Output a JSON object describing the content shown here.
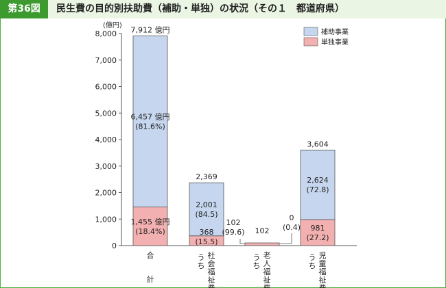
{
  "header": {
    "badge": "第36図",
    "title": "民生費の目的別扶助費（補助・単独）の状況（その１　都道府県）"
  },
  "colors": {
    "subsidized": "#c6d6ee",
    "independent": "#f3b0b0",
    "bar_stroke": "#555555",
    "accent": "#3c9a2e"
  },
  "chart_data": {
    "type": "bar",
    "stacked": true,
    "unit_label": "(億円)",
    "ylim": [
      0,
      8000
    ],
    "yticks": [
      "0",
      "1,000",
      "2,000",
      "3,000",
      "4,000",
      "5,000",
      "6,000",
      "7,000",
      "8,000"
    ],
    "grid": false,
    "legend_position": "top-right",
    "categories": [
      "合計",
      "うち社会福祉費",
      "うち老人福祉費",
      "うち児童福祉費"
    ],
    "series": [
      {
        "name": "単独事業",
        "values": [
          1455,
          368,
          102,
          981
        ]
      },
      {
        "name": "補助事業",
        "values": [
          6457,
          2001,
          0,
          2624
        ]
      }
    ],
    "totals": [
      7912,
      2369,
      102,
      3604
    ],
    "total_labels": [
      "7,912 億円",
      "2,369",
      "102",
      "3,604"
    ],
    "segment_labels": {
      "補助事業": [
        [
          "6,457 億円",
          "(81.6%)"
        ],
        [
          "2,001",
          "(84.5)"
        ],
        [
          "0",
          "(0.4)"
        ],
        [
          "2,624",
          "(72.8)"
        ]
      ],
      "単独事業": [
        [
          "1,455 億円",
          "(18.4%)"
        ],
        [
          "368",
          "(15.5)"
        ],
        [
          "102",
          "(99.6)"
        ],
        [
          "981",
          "(27.2)"
        ]
      ]
    }
  }
}
